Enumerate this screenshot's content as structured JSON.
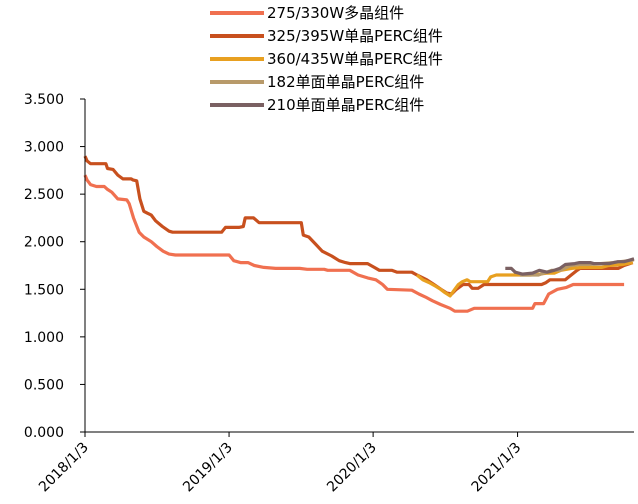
{
  "chart_data": {
    "type": "line",
    "title": "",
    "xlabel": "",
    "ylabel": "",
    "ylim": [
      0,
      3.5
    ],
    "yticks": [
      "0.000",
      "0.500",
      "1.000",
      "1.500",
      "2.000",
      "2.500",
      "3.000",
      "3.500"
    ],
    "xlim": [
      "2018-01-03",
      "2021-10-25"
    ],
    "xticks": [
      {
        "date": "2018-01-03",
        "label": "2018/1/3"
      },
      {
        "date": "2019-01-03",
        "label": "2019/1/3"
      },
      {
        "date": "2020-01-03",
        "label": "2020/1/3"
      },
      {
        "date": "2021-01-03",
        "label": "2021/1/3"
      }
    ],
    "grid": false,
    "legend_position": "top",
    "series": [
      {
        "name": "275/330W多晶组件",
        "color": "#f07050",
        "points": [
          [
            "2018-01-03",
            2.7
          ],
          [
            "2018-01-08",
            2.65
          ],
          [
            "2018-01-17",
            2.6
          ],
          [
            "2018-02-01",
            2.58
          ],
          [
            "2018-02-21",
            2.58
          ],
          [
            "2018-03-01",
            2.55
          ],
          [
            "2018-03-12",
            2.52
          ],
          [
            "2018-03-27",
            2.45
          ],
          [
            "2018-04-19",
            2.44
          ],
          [
            "2018-04-25",
            2.4
          ],
          [
            "2018-05-06",
            2.25
          ],
          [
            "2018-05-20",
            2.1
          ],
          [
            "2018-06-01",
            2.05
          ],
          [
            "2018-06-20",
            2.0
          ],
          [
            "2018-07-04",
            1.95
          ],
          [
            "2018-07-20",
            1.9
          ],
          [
            "2018-08-04",
            1.87
          ],
          [
            "2018-08-20",
            1.86
          ],
          [
            "2019-01-03",
            1.86
          ],
          [
            "2019-01-15",
            1.8
          ],
          [
            "2019-02-01",
            1.78
          ],
          [
            "2019-02-20",
            1.78
          ],
          [
            "2019-03-08",
            1.75
          ],
          [
            "2019-04-01",
            1.73
          ],
          [
            "2019-05-01",
            1.72
          ],
          [
            "2019-07-01",
            1.72
          ],
          [
            "2019-07-20",
            1.71
          ],
          [
            "2019-09-01",
            1.71
          ],
          [
            "2019-09-10",
            1.7
          ],
          [
            "2019-11-05",
            1.7
          ],
          [
            "2019-11-26",
            1.65
          ],
          [
            "2019-12-20",
            1.62
          ],
          [
            "2020-01-10",
            1.6
          ],
          [
            "2020-01-27",
            1.55
          ],
          [
            "2020-02-08",
            1.5
          ],
          [
            "2020-04-10",
            1.49
          ],
          [
            "2020-04-28",
            1.45
          ],
          [
            "2020-05-14",
            1.42
          ],
          [
            "2020-06-01",
            1.38
          ],
          [
            "2020-06-22",
            1.34
          ],
          [
            "2020-07-16",
            1.3
          ],
          [
            "2020-07-28",
            1.27
          ],
          [
            "2020-08-11",
            1.27
          ],
          [
            "2020-08-29",
            1.27
          ],
          [
            "2020-09-15",
            1.3
          ],
          [
            "2020-10-06",
            1.3
          ],
          [
            "2021-02-10",
            1.3
          ],
          [
            "2021-02-16",
            1.35
          ],
          [
            "2021-03-10",
            1.35
          ],
          [
            "2021-03-23",
            1.45
          ],
          [
            "2021-04-14",
            1.5
          ],
          [
            "2021-05-07",
            1.52
          ],
          [
            "2021-05-24",
            1.55
          ],
          [
            "2021-09-30",
            1.55
          ]
        ]
      },
      {
        "name": "325/395W单晶PERC组件",
        "color": "#c8501e",
        "points": [
          [
            "2018-01-03",
            2.9
          ],
          [
            "2018-01-08",
            2.85
          ],
          [
            "2018-01-17",
            2.82
          ],
          [
            "2018-02-25",
            2.82
          ],
          [
            "2018-03-01",
            2.77
          ],
          [
            "2018-03-15",
            2.76
          ],
          [
            "2018-03-27",
            2.7
          ],
          [
            "2018-04-09",
            2.66
          ],
          [
            "2018-04-30",
            2.66
          ],
          [
            "2018-05-04",
            2.65
          ],
          [
            "2018-05-14",
            2.64
          ],
          [
            "2018-05-22",
            2.45
          ],
          [
            "2018-06-01",
            2.32
          ],
          [
            "2018-06-10",
            2.3
          ],
          [
            "2018-06-20",
            2.28
          ],
          [
            "2018-07-01",
            2.22
          ],
          [
            "2018-07-18",
            2.16
          ],
          [
            "2018-08-04",
            2.11
          ],
          [
            "2018-08-13",
            2.1
          ],
          [
            "2018-09-20",
            2.1
          ],
          [
            "2018-12-15",
            2.1
          ],
          [
            "2018-12-25",
            2.15
          ],
          [
            "2019-01-28",
            2.15
          ],
          [
            "2019-02-08",
            2.16
          ],
          [
            "2019-02-13",
            2.25
          ],
          [
            "2019-03-06",
            2.25
          ],
          [
            "2019-03-20",
            2.2
          ],
          [
            "2019-06-20",
            2.2
          ],
          [
            "2019-07-05",
            2.2
          ],
          [
            "2019-07-10",
            2.07
          ],
          [
            "2019-07-24",
            2.05
          ],
          [
            "2019-08-09",
            1.98
          ],
          [
            "2019-08-27",
            1.9
          ],
          [
            "2019-09-20",
            1.85
          ],
          [
            "2019-10-09",
            1.8
          ],
          [
            "2019-10-25",
            1.78
          ],
          [
            "2019-11-05",
            1.77
          ],
          [
            "2019-12-20",
            1.77
          ],
          [
            "2020-01-06",
            1.73
          ],
          [
            "2020-01-19",
            1.7
          ],
          [
            "2020-02-19",
            1.7
          ],
          [
            "2020-03-04",
            1.68
          ],
          [
            "2020-04-10",
            1.68
          ],
          [
            "2020-04-23",
            1.65
          ],
          [
            "2020-05-18",
            1.6
          ],
          [
            "2020-06-05",
            1.55
          ],
          [
            "2020-06-23",
            1.5
          ],
          [
            "2020-07-08",
            1.46
          ],
          [
            "2020-07-20",
            1.45
          ],
          [
            "2020-08-01",
            1.5
          ],
          [
            "2020-08-18",
            1.55
          ],
          [
            "2020-09-02",
            1.55
          ],
          [
            "2020-09-10",
            1.51
          ],
          [
            "2020-09-25",
            1.51
          ],
          [
            "2020-10-10",
            1.55
          ],
          [
            "2021-03-05",
            1.55
          ],
          [
            "2021-03-16",
            1.57
          ],
          [
            "2021-03-26",
            1.6
          ],
          [
            "2021-05-04",
            1.6
          ],
          [
            "2021-05-19",
            1.65
          ],
          [
            "2021-06-03",
            1.7
          ],
          [
            "2021-06-10",
            1.72
          ],
          [
            "2021-09-15",
            1.72
          ],
          [
            "2021-09-30",
            1.75
          ],
          [
            "2021-10-22",
            1.78
          ]
        ]
      },
      {
        "name": "360/435W单晶PERC组件",
        "color": "#e8a020",
        "points": [
          [
            "2020-04-23",
            1.65
          ],
          [
            "2020-05-08",
            1.6
          ],
          [
            "2020-05-24",
            1.57
          ],
          [
            "2020-06-10",
            1.53
          ],
          [
            "2020-06-22",
            1.5
          ],
          [
            "2020-07-01",
            1.47
          ],
          [
            "2020-07-16",
            1.43
          ],
          [
            "2020-07-28",
            1.5
          ],
          [
            "2020-08-06",
            1.55
          ],
          [
            "2020-08-16",
            1.58
          ],
          [
            "2020-08-28",
            1.6
          ],
          [
            "2020-09-05",
            1.58
          ],
          [
            "2020-10-01",
            1.58
          ],
          [
            "2020-10-19",
            1.58
          ],
          [
            "2020-10-27",
            1.63
          ],
          [
            "2020-11-10",
            1.65
          ],
          [
            "2021-01-09",
            1.65
          ],
          [
            "2021-02-05",
            1.65
          ],
          [
            "2021-03-01",
            1.66
          ],
          [
            "2021-03-20",
            1.67
          ],
          [
            "2021-04-06",
            1.67
          ],
          [
            "2021-04-23",
            1.7
          ],
          [
            "2021-05-20",
            1.72
          ],
          [
            "2021-06-15",
            1.73
          ],
          [
            "2021-08-04",
            1.73
          ],
          [
            "2021-08-22",
            1.75
          ],
          [
            "2021-09-25",
            1.76
          ],
          [
            "2021-10-22",
            1.78
          ]
        ]
      },
      {
        "name": "182单面单晶PERC组件",
        "color": "#b89a6a",
        "points": [
          [
            "2021-01-09",
            1.65
          ],
          [
            "2021-02-05",
            1.65
          ],
          [
            "2021-02-25",
            1.65
          ],
          [
            "2021-03-17",
            1.68
          ],
          [
            "2021-03-31",
            1.7
          ],
          [
            "2021-04-21",
            1.7
          ],
          [
            "2021-05-17",
            1.75
          ],
          [
            "2021-06-08",
            1.76
          ],
          [
            "2021-07-01",
            1.76
          ],
          [
            "2021-08-02",
            1.77
          ],
          [
            "2021-09-02",
            1.78
          ],
          [
            "2021-10-10",
            1.8
          ],
          [
            "2021-10-25",
            1.81
          ]
        ]
      },
      {
        "name": "210单面单晶PERC组件",
        "color": "#7a6062",
        "points": [
          [
            "2020-12-03",
            1.72
          ],
          [
            "2020-12-18",
            1.72
          ],
          [
            "2020-12-28",
            1.68
          ],
          [
            "2021-01-15",
            1.66
          ],
          [
            "2021-02-10",
            1.67
          ],
          [
            "2021-02-27",
            1.7
          ],
          [
            "2021-03-19",
            1.68
          ],
          [
            "2021-04-06",
            1.7
          ],
          [
            "2021-04-20",
            1.72
          ],
          [
            "2021-05-04",
            1.76
          ],
          [
            "2021-05-28",
            1.77
          ],
          [
            "2021-06-09",
            1.78
          ],
          [
            "2021-07-06",
            1.78
          ],
          [
            "2021-07-15",
            1.77
          ],
          [
            "2021-08-24",
            1.77
          ],
          [
            "2021-09-14",
            1.79
          ],
          [
            "2021-09-30",
            1.79
          ],
          [
            "2021-10-09",
            1.8
          ],
          [
            "2021-10-25",
            1.82
          ]
        ]
      }
    ]
  }
}
